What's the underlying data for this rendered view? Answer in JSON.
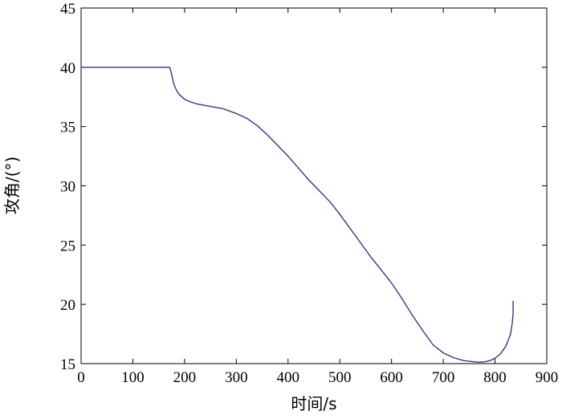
{
  "chart_data": {
    "type": "line",
    "title": "",
    "xlabel": "时间/s",
    "ylabel": "攻角/(°)",
    "xlim": [
      0,
      900
    ],
    "ylim": [
      15,
      45
    ],
    "xticks": [
      0,
      100,
      200,
      300,
      400,
      500,
      600,
      700,
      800,
      900
    ],
    "yticks": [
      15,
      20,
      25,
      30,
      35,
      40,
      45
    ],
    "grid": false,
    "line_color": "#2b3a8f",
    "series": [
      {
        "x": [
          0,
          50,
          100,
          150,
          171,
          172,
          175,
          178,
          180,
          185,
          190,
          200,
          210,
          225,
          250,
          275,
          300,
          320,
          340,
          360,
          380,
          400,
          420,
          440,
          460,
          480,
          500,
          520,
          540,
          560,
          580,
          600,
          620,
          640,
          660,
          680,
          700,
          720,
          740,
          760,
          770,
          780,
          790,
          800,
          810,
          820,
          825,
          830,
          833,
          835,
          835
        ],
        "y": [
          40,
          40,
          40,
          40,
          40,
          39.9,
          39.4,
          38.8,
          38.5,
          38.0,
          37.7,
          37.3,
          37.1,
          36.9,
          36.7,
          36.5,
          36.1,
          35.7,
          35.1,
          34.3,
          33.4,
          32.5,
          31.5,
          30.5,
          29.6,
          28.7,
          27.6,
          26.4,
          25.2,
          24.0,
          22.9,
          21.8,
          20.5,
          19.1,
          17.8,
          16.6,
          15.9,
          15.5,
          15.25,
          15.15,
          15.12,
          15.15,
          15.25,
          15.45,
          15.8,
          16.4,
          16.9,
          17.5,
          18.3,
          19.2,
          20.3
        ]
      }
    ]
  }
}
